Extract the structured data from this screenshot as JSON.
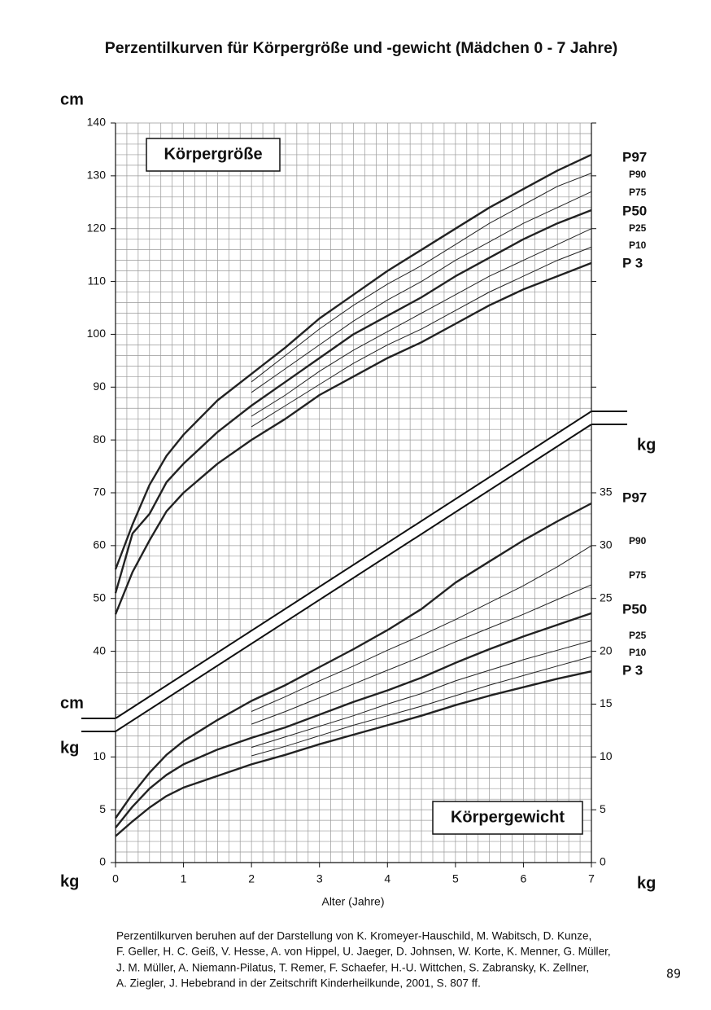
{
  "chart_data": {
    "type": "line",
    "title": "Perzentilkurven für Körpergröße und -gewicht (Mädchen 0 - 7 Jahre)",
    "xlabel": "Alter (Jahre)",
    "panel_labels": [
      "Körpergröße",
      "Körpergewicht"
    ],
    "unit_labels": [
      "cm",
      "cm",
      "kg",
      "kg",
      "kg",
      "kg"
    ],
    "x": [
      0,
      0.25,
      0.5,
      0.75,
      1,
      1.5,
      2,
      2.5,
      3,
      3.5,
      4,
      4.5,
      5,
      5.5,
      6,
      6.5,
      7
    ],
    "xlim": [
      0,
      7
    ],
    "xticks": [
      0,
      1,
      2,
      3,
      4,
      5,
      6,
      7
    ],
    "ylim": [
      0,
      140
    ],
    "yticks": [
      40,
      50,
      60,
      70,
      80,
      90,
      100,
      110,
      120,
      130,
      140
    ],
    "y2lim": [
      0,
      70
    ],
    "y2ticks": [
      0,
      5,
      10,
      15,
      20,
      25,
      30,
      35
    ],
    "y2ticks_left": [
      0,
      5,
      10
    ],
    "grid": true,
    "series": [
      {
        "name": "P97",
        "color": "#222",
        "bold": true,
        "values": [
          55.5,
          64,
          71.5,
          77,
          81,
          87.5,
          92.5,
          97.5,
          103,
          107.5,
          112,
          116,
          120,
          124,
          127.5,
          131,
          134
        ]
      },
      {
        "name": "P90",
        "color": "#222",
        "bold": false,
        "values": [
          null,
          null,
          null,
          null,
          null,
          null,
          91,
          96,
          101,
          105.5,
          109.5,
          113,
          117,
          121,
          124.5,
          128,
          130.5
        ]
      },
      {
        "name": "P75",
        "color": "#222",
        "bold": false,
        "values": [
          null,
          null,
          null,
          null,
          null,
          null,
          89,
          93.5,
          98,
          102.5,
          106.5,
          110,
          114,
          117.5,
          121,
          124,
          127
        ]
      },
      {
        "name": "P50",
        "color": "#222",
        "bold": true,
        "values": [
          51,
          62.3,
          66,
          72,
          75.5,
          81.5,
          86.5,
          91,
          95.5,
          100,
          103.5,
          107,
          111,
          114.5,
          118,
          121,
          123.5
        ]
      },
      {
        "name": "P25",
        "color": "#222",
        "bold": false,
        "values": [
          null,
          null,
          null,
          null,
          null,
          null,
          84.5,
          88.5,
          93,
          97,
          100.5,
          104,
          107.5,
          111,
          114,
          117,
          120
        ]
      },
      {
        "name": "P10",
        "color": "#222",
        "bold": false,
        "values": [
          null,
          null,
          null,
          null,
          null,
          null,
          82.5,
          86.5,
          90.5,
          94.5,
          98,
          101,
          104.5,
          108,
          111,
          114,
          116.5
        ]
      },
      {
        "name": "P 3",
        "color": "#222",
        "bold": true,
        "values": [
          47,
          55,
          61,
          66.5,
          70,
          75.5,
          80,
          84,
          88.5,
          92,
          95.5,
          98.5,
          102,
          105.5,
          108.5,
          111,
          113.5
        ]
      },
      {
        "name": "P97",
        "color": "#222",
        "bold": true,
        "axis": "y2",
        "values": [
          4.2,
          6.5,
          8.5,
          10.2,
          11.5,
          13.5,
          15.3,
          16.8,
          18.5,
          20.2,
          22,
          24,
          26.5,
          28.5,
          30.5,
          32.3,
          34
        ]
      },
      {
        "name": "P90",
        "color": "#222",
        "bold": false,
        "axis": "y2",
        "values": [
          null,
          null,
          null,
          null,
          null,
          null,
          14.3,
          15.7,
          17.2,
          18.6,
          20.1,
          21.5,
          23,
          24.6,
          26.2,
          28,
          30
        ]
      },
      {
        "name": "P75",
        "color": "#222",
        "bold": false,
        "axis": "y2",
        "values": [
          null,
          null,
          null,
          null,
          null,
          null,
          13.1,
          14.3,
          15.6,
          16.9,
          18.2,
          19.5,
          20.9,
          22.2,
          23.5,
          24.9,
          26.3
        ]
      },
      {
        "name": "P50",
        "color": "#222",
        "bold": true,
        "axis": "y2",
        "values": [
          3.3,
          5.3,
          7,
          8.3,
          9.3,
          10.7,
          11.8,
          12.8,
          14,
          15.2,
          16.3,
          17.5,
          18.9,
          20.2,
          21.4,
          22.5,
          23.6
        ]
      },
      {
        "name": "P25",
        "color": "#222",
        "bold": false,
        "axis": "y2",
        "values": [
          null,
          null,
          null,
          null,
          null,
          null,
          10.9,
          11.9,
          12.9,
          13.9,
          15,
          16,
          17.2,
          18.2,
          19.2,
          20.1,
          21
        ]
      },
      {
        "name": "P10",
        "color": "#222",
        "bold": false,
        "axis": "y2",
        "values": [
          null,
          null,
          null,
          null,
          null,
          null,
          10.1,
          11,
          12,
          13,
          13.9,
          14.8,
          15.8,
          16.8,
          17.7,
          18.6,
          19.5
        ]
      },
      {
        "name": "P 3",
        "color": "#222",
        "bold": true,
        "axis": "y2",
        "values": [
          2.5,
          3.9,
          5.2,
          6.3,
          7.1,
          8.2,
          9.3,
          10.2,
          11.2,
          12.1,
          13,
          13.9,
          14.9,
          15.8,
          16.6,
          17.4,
          18.1
        ]
      }
    ],
    "footnote": [
      "Perzentilkurven beruhen auf der Darstellung von K. Kromeyer-Hauschild, M. Wabitsch, D. Kunze,",
      "F. Geller, H. C. Geiß, V. Hesse, A. von Hippel, U. Jaeger, D. Johnsen, W. Korte, K. Menner, G. Müller,",
      "J. M. Müller, A. Niemann-Pilatus, T. Remer, F. Schaefer, H.-U. Wittchen, S. Zabransky, K. Zellner,",
      "A. Ziegler, J. Hebebrand in der Zeitschrift Kinderheilkunde, 2001, S. 807 ff."
    ],
    "page_number": "89"
  }
}
